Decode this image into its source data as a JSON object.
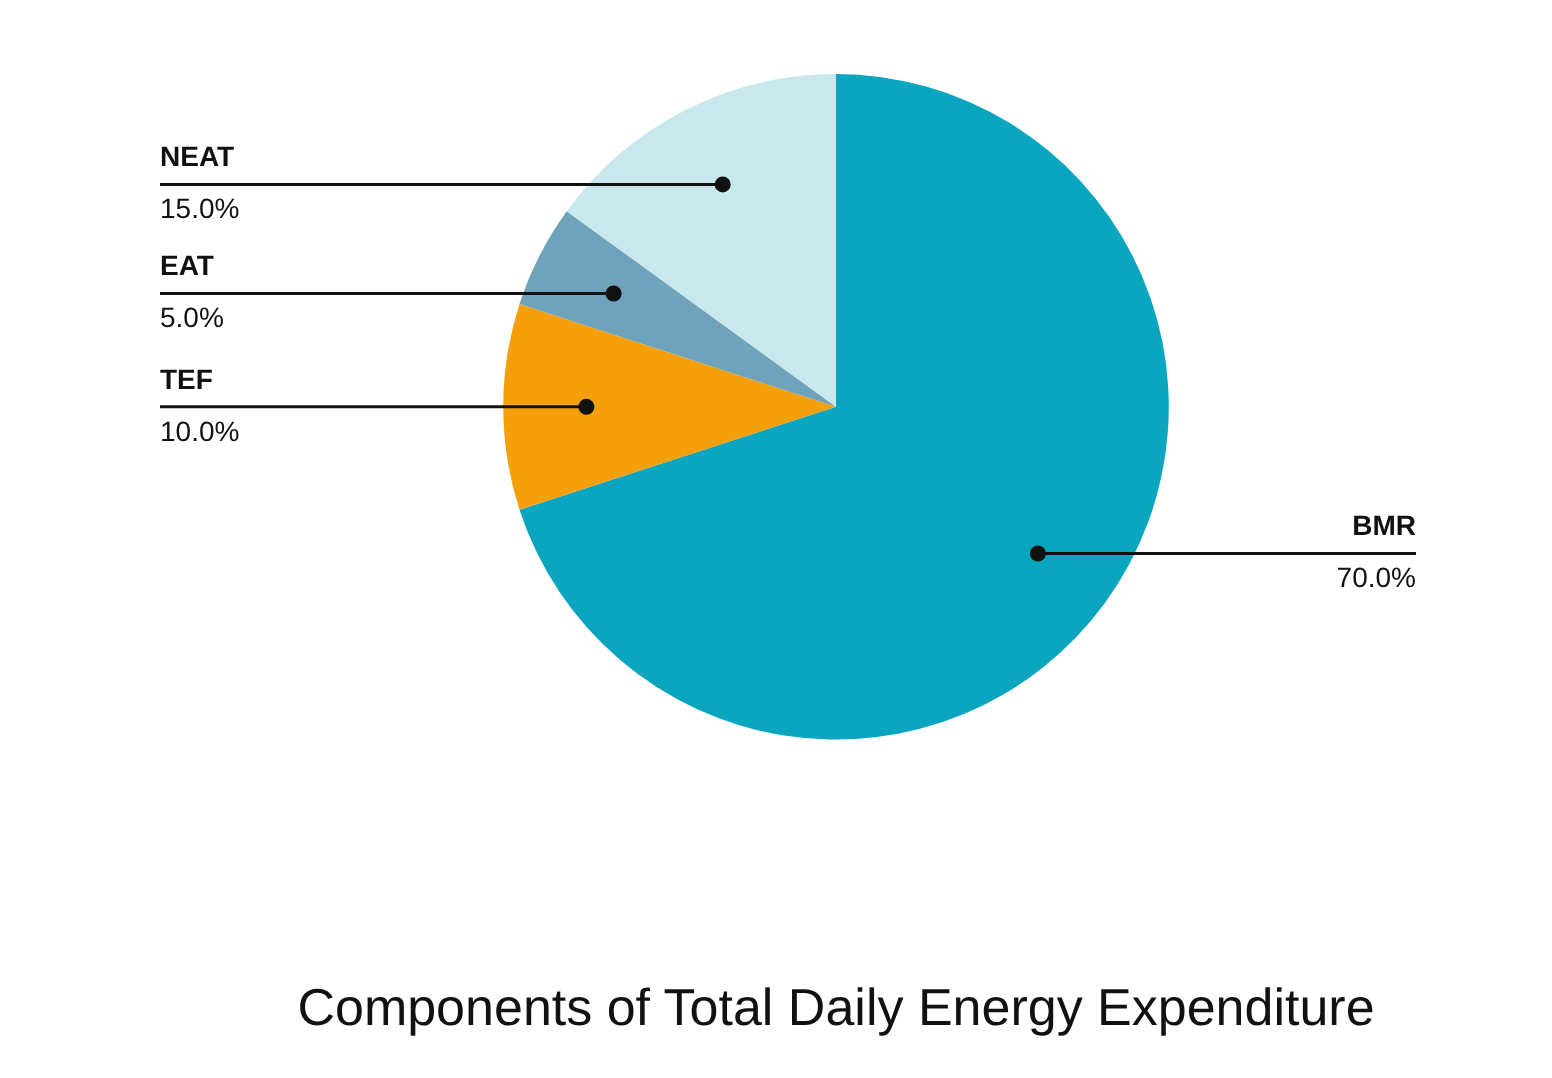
{
  "chart_data": {
    "type": "pie",
    "title": "Components of Total Daily Energy Expenditure",
    "categories": [
      "BMR",
      "TEF",
      "EAT",
      "NEAT"
    ],
    "values": [
      70,
      10,
      5,
      15
    ],
    "colors": [
      "#0aa6c0",
      "#f5a00a",
      "#6fa3bc",
      "#c8e8ee"
    ],
    "value_labels": [
      "70.0%",
      "10.0%",
      "5.0%",
      "15.0%"
    ],
    "legend": false
  }
}
